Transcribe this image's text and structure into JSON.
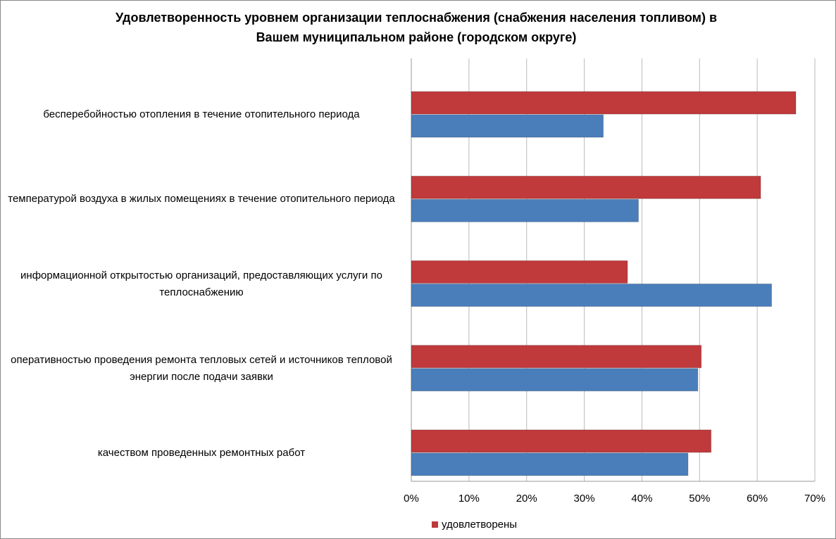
{
  "chart_data": {
    "type": "hbar",
    "title": "Удовлетворенность уровнем организации теплоснабжения (снабжения населения топливом) в Вашем муниципальном районе (городском округе)",
    "categories": [
      "бесперебойностью  отопления в течение отопительного периода",
      "температурой воздуха в жилых помещениях в течение отопительного периода",
      "информационной открытостью организаций, предоставляющих услуги по теплоснабжению",
      "оперативностью проведения ремонта тепловых сетей и источников тепловой энергии после подачи заявки",
      "качеством проведенных ремонтных работ"
    ],
    "series": [
      {
        "name": "удовлетворены",
        "color": "#c0393b",
        "values": [
          66.7,
          60.6,
          37.5,
          50.3,
          52.0
        ]
      },
      {
        "color": "#4a7ebb",
        "values": [
          33.3,
          39.4,
          62.5,
          49.7,
          48.0
        ]
      }
    ],
    "xlim": [
      0,
      70
    ],
    "xticks": [
      {
        "value": 0,
        "label": "0%"
      },
      {
        "value": 10,
        "label": "10%"
      },
      {
        "value": 20,
        "label": "20%"
      },
      {
        "value": 30,
        "label": "30%"
      },
      {
        "value": 40,
        "label": "40%"
      },
      {
        "value": 50,
        "label": "50%"
      },
      {
        "value": 60,
        "label": "60%"
      },
      {
        "value": 70,
        "label": "70%"
      }
    ],
    "grid": true,
    "legend": "bottom"
  }
}
